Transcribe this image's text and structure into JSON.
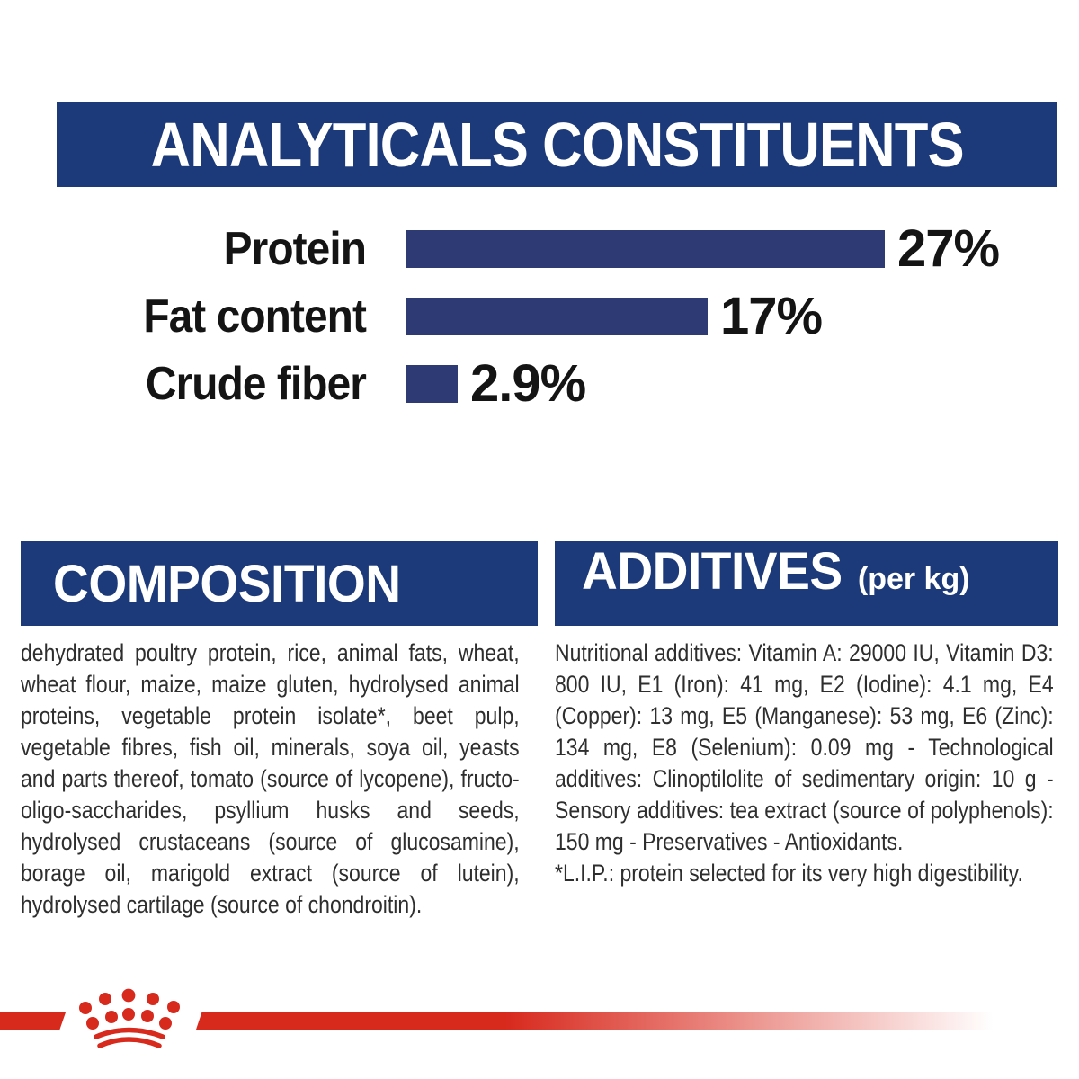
{
  "colors": {
    "band_navy": "#1c3a79",
    "bar_navy": "#2d3a74",
    "brand_red": "#d8291d",
    "body_text": "#2e2e2e",
    "heading_text": "#ffffff"
  },
  "analyticals": {
    "title": "ANALYTICALS CONSTITUENTS"
  },
  "chart_data": {
    "type": "bar",
    "orientation": "horizontal",
    "title": "ANALYTICALS CONSTITUENTS",
    "categories": [
      "Protein",
      "Fat content",
      "Crude fiber"
    ],
    "values": [
      27,
      17,
      2.9
    ],
    "value_labels": [
      "27%",
      "17%",
      "2.9%"
    ],
    "unit": "%",
    "xlim": [
      0,
      27
    ],
    "grid": false,
    "legend": false,
    "bar_color": "#2d3a74"
  },
  "composition": {
    "title": "COMPOSITION",
    "body": "dehydrated poultry protein, rice, animal fats, wheat, wheat flour, maize, maize gluten, hydrolysed animal proteins, vegetable protein isolate*, beet pulp, vegetable fibres, fish oil, minerals, soya oil, yeasts and parts thereof, tomato (source of lycopene), fructo-oligo-saccharides, psyllium husks and seeds, hydrolysed crustaceans (source of glucosamine), borage oil, marigold extract (source of lutein), hydrolysed cartilage (source of chondroitin)."
  },
  "additives": {
    "title": "ADDITIVES",
    "unit": "(per kg)",
    "body": "Nutritional additives: Vitamin A: 29000 IU, Vitamin D3: 800 IU, E1 (Iron): 41 mg, E2 (Iodine): 4.1 mg, E4 (Copper): 13 mg, E5 (Manganese): 53 mg, E6 (Zinc): 134 mg, E8 (Selenium): 0.09 mg - Technological additives: Clinoptilolite of sedimentary origin: 10 g - Sensory additives: tea extract (source of polyphenols): 150 mg - Preservatives - Antioxidants.",
    "footnote": "*L.I.P.: protein selected for its very high digestibility."
  },
  "footer": {
    "brand_icon": "royal-canin-crown"
  }
}
